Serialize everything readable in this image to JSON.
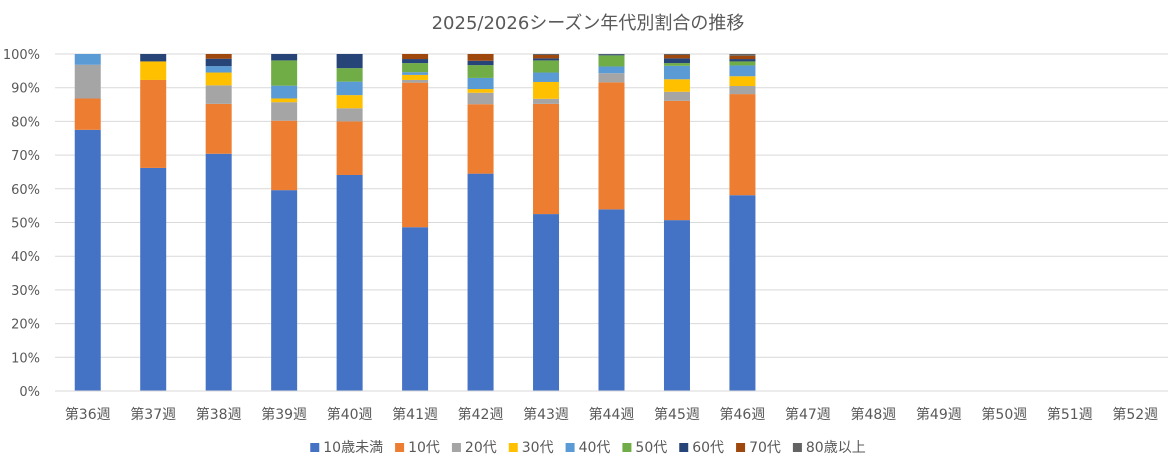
{
  "chart_data": {
    "type": "bar",
    "stacked": "percent",
    "title": "2025/2026シーズン年代別割合の推移",
    "xlabel": "",
    "ylabel": "",
    "ylim": [
      0,
      100
    ],
    "y_ticks": [
      "0%",
      "10%",
      "20%",
      "30%",
      "40%",
      "50%",
      "60%",
      "70%",
      "80%",
      "90%",
      "100%"
    ],
    "grid": true,
    "legend_position": "bottom",
    "categories": [
      "第36週",
      "第37週",
      "第38週",
      "第39週",
      "第40週",
      "第41週",
      "第42週",
      "第43週",
      "第44週",
      "第45週",
      "第46週",
      "第47週",
      "第48週",
      "第49週",
      "第50週",
      "第51週",
      "第52週"
    ],
    "series": [
      {
        "name": "10歳未満",
        "color": "#4472C4",
        "values": [
          77.5,
          66.2,
          70.4,
          59.6,
          64.1,
          48.6,
          64.5,
          52.5,
          53.9,
          50.7,
          58.1,
          null,
          null,
          null,
          null,
          null,
          null
        ]
      },
      {
        "name": "10代",
        "color": "#ED7D31",
        "values": [
          9.3,
          26.1,
          14.8,
          20.6,
          15.9,
          42.9,
          20.6,
          32.7,
          37.7,
          35.4,
          30.0,
          null,
          null,
          null,
          null,
          null,
          null
        ]
      },
      {
        "name": "20代",
        "color": "#A5A5A5",
        "values": [
          10.0,
          0,
          5.5,
          5.5,
          3.9,
          0.8,
          3.4,
          1.5,
          2.7,
          2.7,
          2.4,
          null,
          null,
          null,
          null,
          null,
          null
        ]
      },
      {
        "name": "30代",
        "color": "#FFC000",
        "values": [
          0,
          5.5,
          3.8,
          1.1,
          3.9,
          1.5,
          1.1,
          5.0,
          0,
          3.7,
          2.9,
          null,
          null,
          null,
          null,
          null,
          null
        ]
      },
      {
        "name": "40代",
        "color": "#5B9BD5",
        "values": [
          3.2,
          0,
          1.9,
          3.8,
          4.0,
          0.8,
          3.3,
          2.8,
          2.0,
          4.0,
          3.2,
          null,
          null,
          null,
          null,
          null,
          null
        ]
      },
      {
        "name": "50代",
        "color": "#70AD47",
        "values": [
          0,
          0,
          0,
          7.5,
          4.0,
          2.7,
          3.8,
          3.6,
          3.3,
          0.8,
          1.2,
          null,
          null,
          null,
          null,
          null,
          null
        ]
      },
      {
        "name": "60代",
        "color": "#264478",
        "values": [
          0,
          2.2,
          2.2,
          1.9,
          4.2,
          1.2,
          1.3,
          0.6,
          0.3,
          1.4,
          0.7,
          null,
          null,
          null,
          null,
          null,
          null
        ]
      },
      {
        "name": "70代",
        "color": "#9E480E",
        "values": [
          0,
          0,
          1.4,
          0,
          0,
          1.5,
          2.0,
          1.0,
          0,
          1.0,
          1.0,
          null,
          null,
          null,
          null,
          null,
          null
        ]
      },
      {
        "name": "80歳以上",
        "color": "#636363",
        "values": [
          0,
          0,
          0,
          0,
          0,
          0,
          0,
          0.3,
          0.1,
          0.3,
          0.5,
          null,
          null,
          null,
          null,
          null,
          null
        ]
      }
    ]
  }
}
